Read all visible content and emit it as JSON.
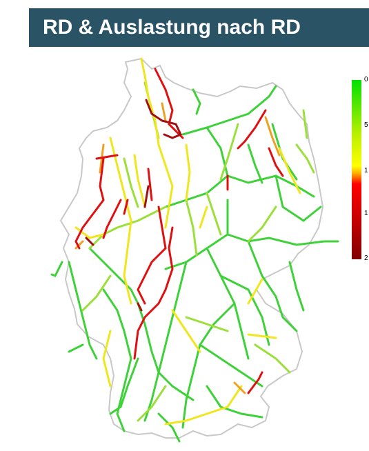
{
  "title": "RD & Auslastung nach RD",
  "legend": {
    "gradient_colors": [
      "#00e000",
      "#b8f000",
      "#ffff00",
      "#ffb000",
      "#ff0000",
      "#c00000",
      "#800000"
    ],
    "ticks": [
      "0",
      "5",
      "1",
      "1",
      "2"
    ]
  },
  "colors": {
    "title_bg": "#2a5366",
    "border": "#c8c8c8",
    "green": "#3fd13a",
    "lightgreen": "#9be03a",
    "yellow": "#f0e61e",
    "orange": "#f0a020",
    "red": "#e01010",
    "darkred": "#a01010"
  }
}
